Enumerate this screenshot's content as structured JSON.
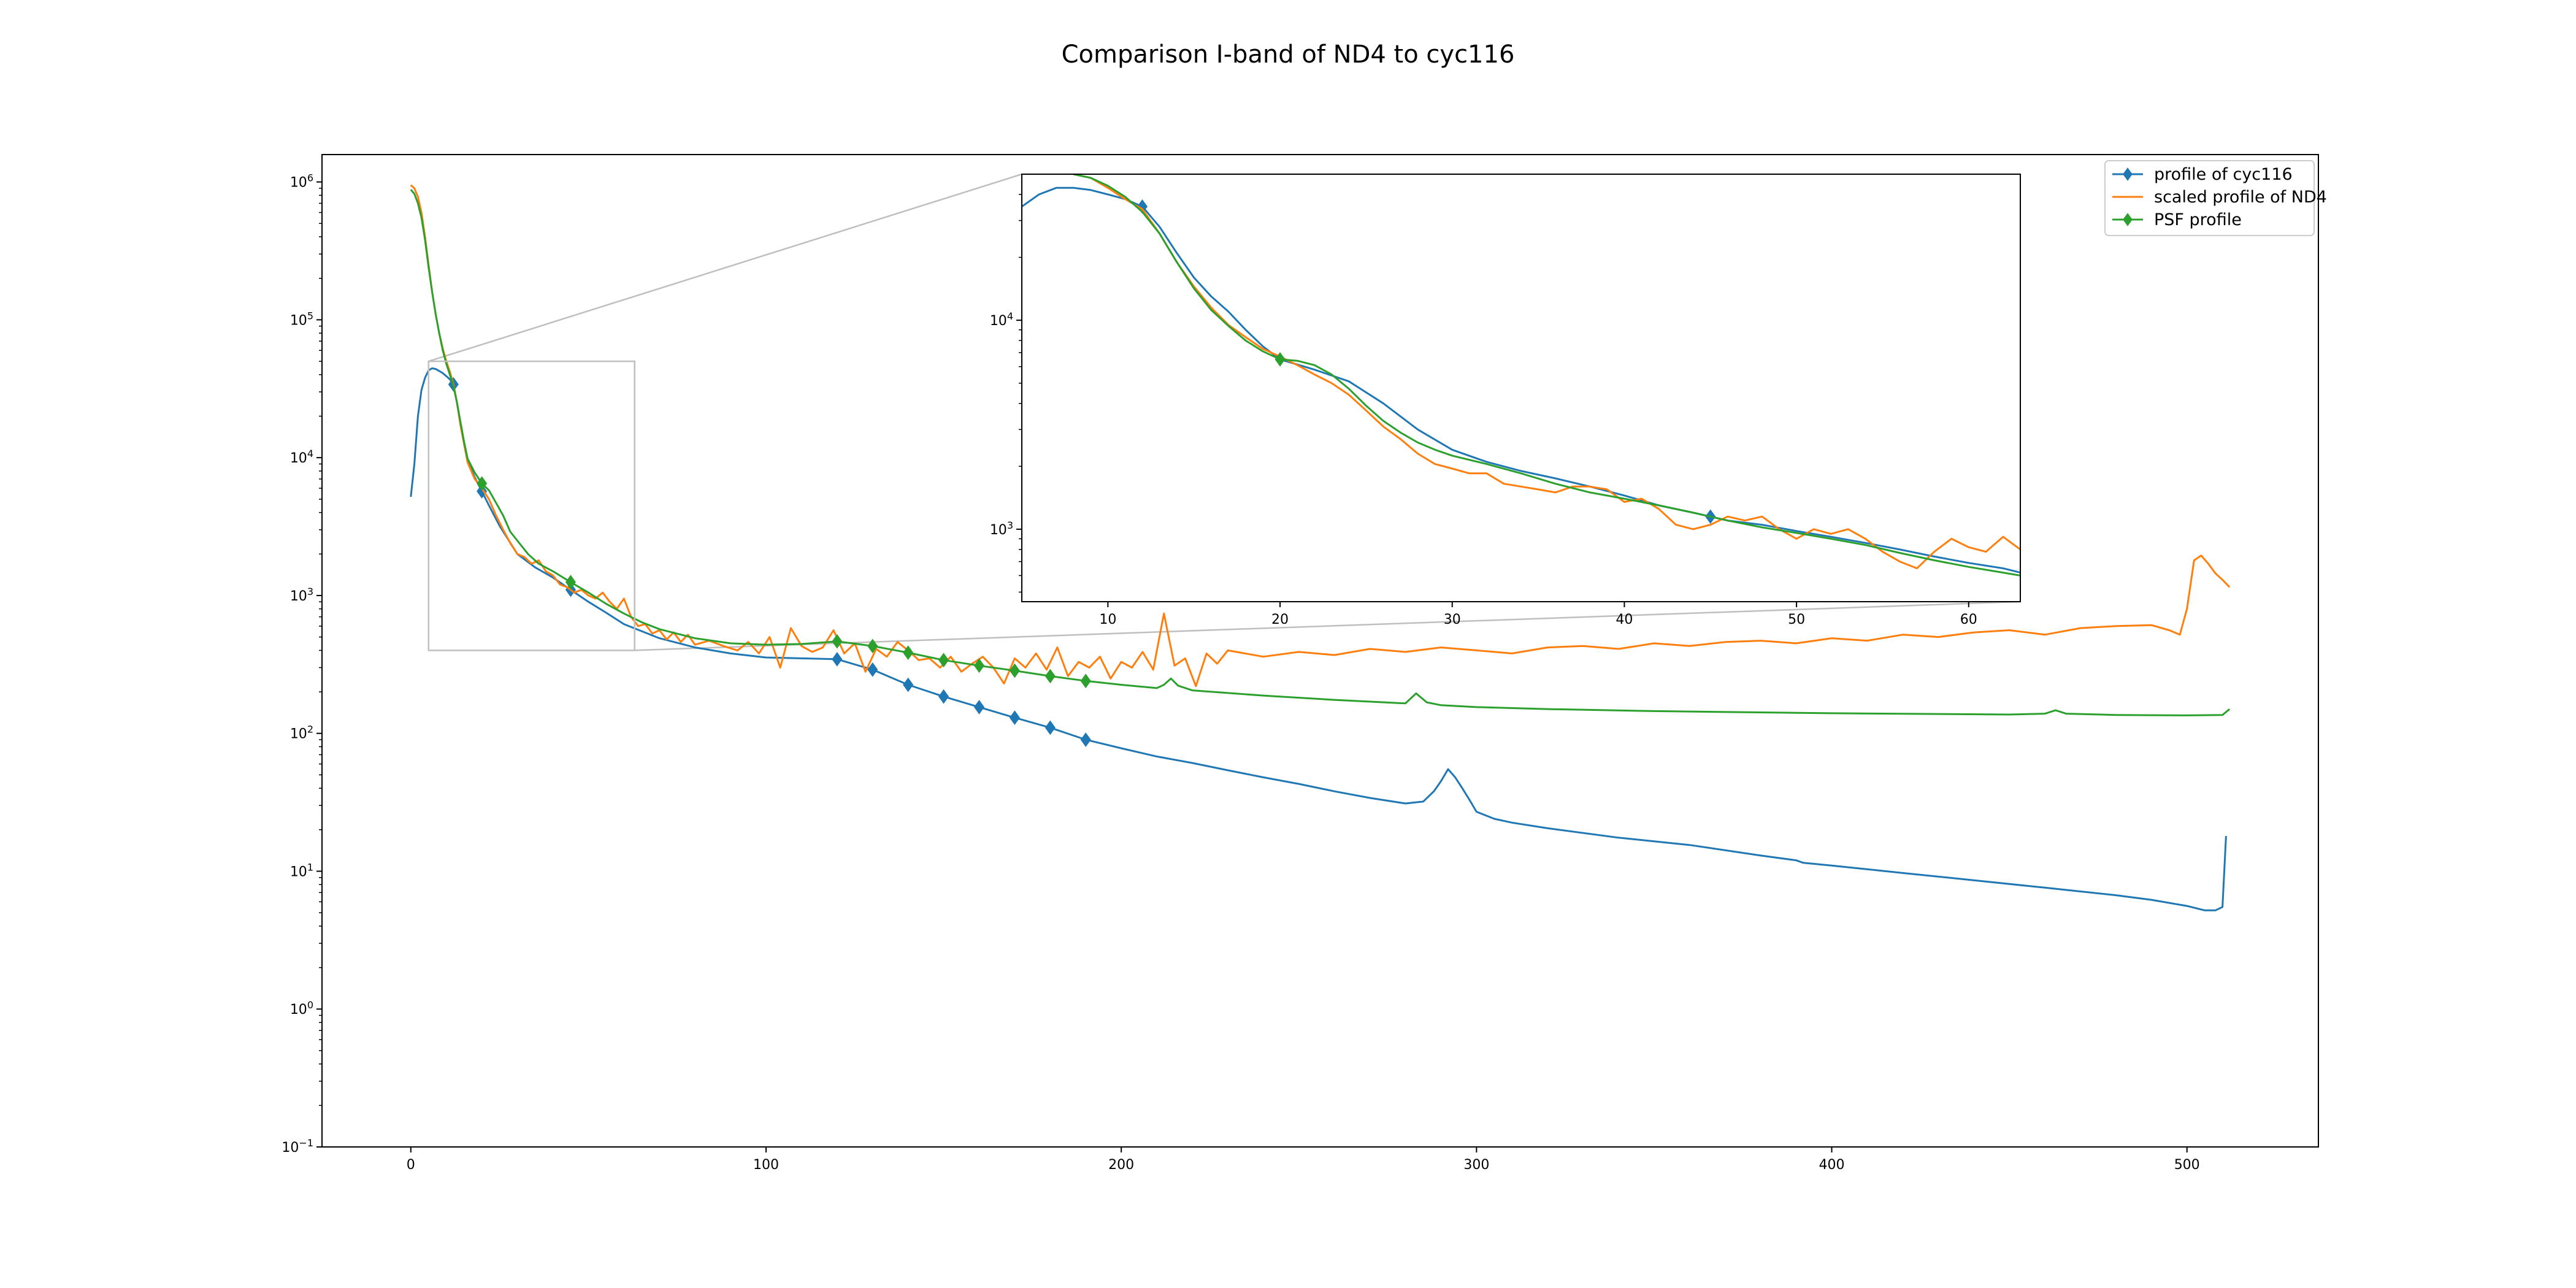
{
  "chart_data": [
    {
      "type": "line",
      "title": "Comparison I-band of ND4 to cyc116",
      "xlabel": "",
      "ylabel": "",
      "xlim": [
        -25,
        537
      ],
      "ylim": [
        0.1,
        1580000
      ],
      "yscale": "log",
      "x_ticks": [
        0,
        100,
        200,
        300,
        400,
        500
      ],
      "x_tick_labels": [
        "0",
        "100",
        "200",
        "300",
        "400",
        "500"
      ],
      "y_ticks": [
        0.1,
        1,
        10,
        100,
        1000,
        10000,
        100000,
        1000000
      ],
      "y_tick_bases": [
        "10",
        "10",
        "10",
        "10",
        "10",
        "10",
        "10",
        "10"
      ],
      "y_tick_exponents": [
        "−1",
        "0",
        "1",
        "2",
        "3",
        "4",
        "5",
        "6"
      ],
      "grid": false,
      "legend_position": "top-right",
      "legend_entries": [
        "profile of cyc116",
        "scaled profile of ND4",
        "PSF profile"
      ],
      "colors": {
        "cyc116": "#1f77b4",
        "nd4": "#ff7f0e",
        "psf": "#2ca02c",
        "zoom_box": "#bfbfbf"
      },
      "zoom_box": {
        "x": [
          5,
          63
        ],
        "y": [
          400,
          50000
        ]
      },
      "series": [
        {
          "name": "profile of cyc116",
          "marker": "diamond",
          "marker_x": [
            12,
            20,
            45,
            120,
            130,
            140,
            150,
            160,
            170,
            180,
            190
          ],
          "x": [
            0,
            1,
            2,
            3,
            4,
            5,
            6,
            7,
            8,
            9,
            10,
            11,
            12,
            13,
            14,
            15,
            16,
            18,
            20,
            22,
            25,
            30,
            35,
            40,
            45,
            50,
            55,
            60,
            70,
            80,
            90,
            100,
            110,
            120,
            130,
            140,
            150,
            160,
            170,
            180,
            190,
            200,
            210,
            220,
            230,
            240,
            250,
            260,
            270,
            280,
            285,
            288,
            290,
            292,
            294,
            296,
            298,
            300,
            305,
            310,
            320,
            340,
            360,
            380,
            390,
            392,
            400,
            420,
            440,
            460,
            480,
            490,
            500,
            505,
            508,
            510,
            511
          ],
          "y": [
            5200,
            9000,
            20000,
            31000,
            38000,
            43000,
            44500,
            44000,
            42500,
            41000,
            39000,
            37000,
            34000,
            25000,
            17500,
            12500,
            9500,
            7200,
            5700,
            4500,
            3200,
            2000,
            1600,
            1350,
            1100,
            900,
            750,
            620,
            490,
            420,
            380,
            355,
            350,
            345,
            290,
            225,
            185,
            155,
            130,
            110,
            90,
            78,
            68,
            61,
            54,
            48,
            43,
            38,
            34,
            31,
            32,
            38,
            45,
            55,
            48,
            40,
            33,
            27,
            24,
            22.5,
            20.5,
            17.5,
            15.5,
            13,
            12,
            11.5,
            11,
            9.7,
            8.6,
            7.6,
            6.7,
            6.2,
            5.6,
            5.2,
            5.2,
            5.5,
            18
          ]
        },
        {
          "name": "scaled profile of ND4",
          "marker": "none",
          "x": [
            0,
            1,
            2,
            3,
            4,
            5,
            6,
            7,
            8,
            9,
            10,
            11,
            12,
            13,
            14,
            15,
            16,
            18,
            20,
            22,
            24,
            26,
            28,
            30,
            32,
            34,
            36,
            38,
            40,
            42,
            44,
            46,
            48,
            50,
            52,
            54,
            56,
            58,
            60,
            62,
            64,
            66,
            68,
            70,
            72,
            74,
            76,
            78,
            80,
            84,
            88,
            92,
            95,
            98,
            101,
            104,
            107,
            110,
            113,
            116,
            119,
            122,
            125,
            128,
            131,
            134,
            137,
            140,
            143,
            146,
            149,
            152,
            155,
            158,
            161,
            164,
            167,
            170,
            173,
            176,
            179,
            182,
            185,
            188,
            191,
            194,
            197,
            200,
            203,
            206,
            209,
            212,
            215,
            218,
            221,
            224,
            227,
            230,
            240,
            250,
            260,
            270,
            280,
            290,
            300,
            310,
            320,
            330,
            340,
            350,
            360,
            370,
            380,
            390,
            400,
            410,
            420,
            430,
            440,
            450,
            460,
            470,
            480,
            490,
            495,
            498,
            500,
            502,
            504,
            506,
            508,
            510,
            512
          ],
          "y": [
            950000,
            900000,
            780000,
            600000,
            400000,
            250000,
            160000,
            110000,
            80000,
            62000,
            50000,
            42000,
            34000,
            25000,
            17000,
            12500,
            9200,
            7000,
            6000,
            5000,
            3800,
            3000,
            2400,
            2000,
            1900,
            1700,
            1800,
            1500,
            1400,
            1200,
            1150,
            1050,
            1100,
            1000,
            950,
            1050,
            900,
            800,
            950,
            700,
            600,
            620,
            530,
            560,
            480,
            540,
            460,
            520,
            440,
            470,
            430,
            400,
            460,
            380,
            500,
            300,
            580,
            430,
            390,
            420,
            560,
            380,
            450,
            280,
            410,
            360,
            460,
            400,
            340,
            350,
            300,
            360,
            280,
            320,
            360,
            300,
            230,
            350,
            300,
            380,
            290,
            420,
            260,
            330,
            300,
            360,
            250,
            330,
            300,
            390,
            290,
            740,
            310,
            350,
            220,
            380,
            320,
            400,
            360,
            390,
            370,
            410,
            390,
            420,
            400,
            380,
            420,
            430,
            410,
            450,
            430,
            460,
            470,
            450,
            490,
            470,
            520,
            500,
            540,
            560,
            520,
            580,
            600,
            610,
            560,
            520,
            800,
            1800,
            1950,
            1700,
            1450,
            1300,
            1150
          ]
        },
        {
          "name": "PSF profile",
          "marker": "diamond",
          "marker_x": [
            20,
            45,
            120,
            130,
            140,
            150,
            160,
            170,
            180,
            190
          ],
          "x": [
            0,
            1,
            2,
            3,
            4,
            5,
            6,
            7,
            8,
            9,
            10,
            11,
            12,
            13,
            14,
            15,
            16,
            18,
            20,
            22,
            24,
            26,
            28,
            30,
            33,
            36,
            40,
            45,
            50,
            55,
            60,
            65,
            70,
            80,
            90,
            100,
            110,
            120,
            130,
            140,
            150,
            160,
            170,
            180,
            190,
            200,
            210,
            212,
            214,
            216,
            220,
            240,
            260,
            280,
            283,
            286,
            290,
            300,
            320,
            350,
            400,
            450,
            460,
            463,
            466,
            480,
            500,
            510,
            512
          ],
          "y": [
            880000,
            820000,
            700000,
            550000,
            380000,
            240000,
            160000,
            110000,
            80000,
            60000,
            48000,
            40000,
            33000,
            25000,
            18000,
            13000,
            9800,
            7800,
            6500,
            5800,
            4700,
            3800,
            2900,
            2500,
            2000,
            1700,
            1500,
            1250,
            1050,
            870,
            740,
            640,
            570,
            490,
            450,
            440,
            445,
            465,
            430,
            385,
            340,
            310,
            285,
            260,
            240,
            225,
            213,
            225,
            250,
            222,
            205,
            188,
            175,
            165,
            195,
            168,
            160,
            155,
            150,
            145,
            140,
            137,
            139,
            147,
            139,
            136,
            135,
            136,
            150
          ]
        }
      ],
      "inset": {
        "type": "line",
        "xlim": [
          5,
          63
        ],
        "ylim": [
          450,
          50000
        ],
        "yscale": "log",
        "x_ticks": [
          10,
          20,
          30,
          40,
          50,
          60
        ],
        "x_tick_labels": [
          "10",
          "20",
          "30",
          "40",
          "50",
          "60"
        ],
        "y_ticks": [
          1000,
          10000
        ],
        "y_tick_bases": [
          "10",
          "10"
        ],
        "y_tick_exponents": [
          "3",
          "4"
        ],
        "series": [
          {
            "name": "profile of cyc116",
            "marker_x": [
              12,
              45
            ],
            "x": [
              5,
              6,
              7,
              8,
              9,
              10,
              11,
              12,
              13,
              14,
              15,
              16,
              17,
              18,
              19,
              20,
              22,
              24,
              26,
              28,
              30,
              32,
              34,
              36,
              38,
              40,
              42,
              44,
              46,
              48,
              50,
              52,
              54,
              56,
              58,
              60,
              62,
              63
            ],
            "y": [
              35000,
              40000,
              43000,
              43000,
              42000,
              40000,
              38000,
              35000,
              28000,
              21000,
              16000,
              13000,
              11000,
              9000,
              7500,
              6500,
              5800,
              5100,
              4000,
              3000,
              2400,
              2100,
              1900,
              1750,
              1600,
              1450,
              1300,
              1200,
              1100,
              1050,
              980,
              920,
              860,
              800,
              740,
              690,
              650,
              620
            ]
          },
          {
            "name": "scaled profile of ND4",
            "x": [
              8,
              9,
              10,
              11,
              12,
              13,
              14,
              15,
              16,
              17,
              18,
              19,
              20,
              21,
              22,
              23,
              24,
              25,
              26,
              27,
              28,
              29,
              30,
              31,
              32,
              33,
              34,
              35,
              36,
              37,
              38,
              39,
              40,
              41,
              42,
              43,
              44,
              45,
              46,
              47,
              48,
              49,
              50,
              51,
              52,
              53,
              54,
              55,
              56,
              57,
              58,
              59,
              60,
              61,
              62,
              63
            ],
            "y": [
              50000,
              48000,
              43000,
              38000,
              34000,
              26000,
              19000,
              14500,
              11500,
              9500,
              8300,
              7300,
              6700,
              6100,
              5500,
              5000,
              4400,
              3700,
              3100,
              2700,
              2300,
              2050,
              1950,
              1850,
              1850,
              1650,
              1600,
              1550,
              1500,
              1600,
              1600,
              1550,
              1350,
              1400,
              1250,
              1050,
              1000,
              1050,
              1150,
              1100,
              1150,
              1000,
              900,
              1000,
              950,
              1000,
              900,
              780,
              700,
              650,
              780,
              900,
              820,
              780,
              920,
              800
            ]
          },
          {
            "name": "PSF profile",
            "marker_x": [
              20
            ],
            "x": [
              8,
              9,
              10,
              11,
              12,
              13,
              14,
              15,
              16,
              17,
              18,
              19,
              20,
              21,
              22,
              23,
              24,
              25,
              26,
              27,
              28,
              29,
              30,
              32,
              34,
              36,
              38,
              40,
              42,
              44,
              46,
              48,
              50,
              52,
              54,
              56,
              58,
              60,
              62,
              63
            ],
            "y": [
              50000,
              48000,
              44000,
              39000,
              33000,
              26000,
              19000,
              14200,
              11200,
              9400,
              8000,
              7100,
              6500,
              6400,
              6100,
              5500,
              4700,
              3900,
              3300,
              2900,
              2600,
              2400,
              2250,
              2050,
              1850,
              1650,
              1500,
              1400,
              1300,
              1200,
              1100,
              1020,
              960,
              900,
              840,
              770,
              710,
              660,
              620,
              600
            ]
          }
        ]
      }
    }
  ]
}
